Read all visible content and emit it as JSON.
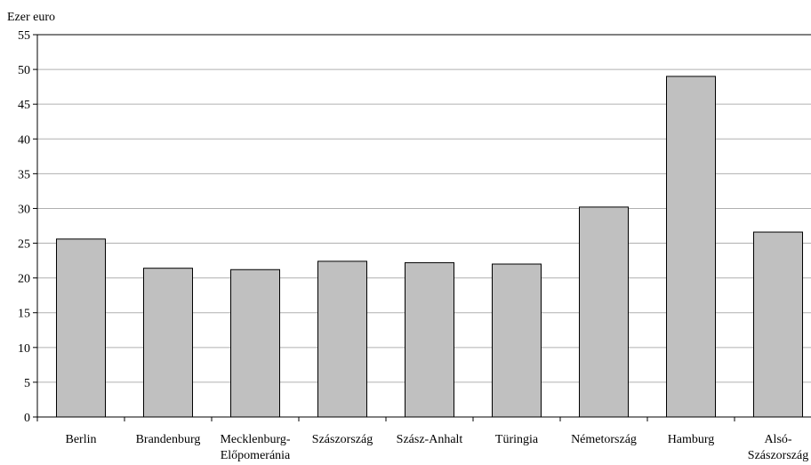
{
  "chart_data": {
    "type": "bar",
    "ylabel": "Ezer euro",
    "ylim": [
      0,
      55
    ],
    "y_ticks": [
      0,
      5,
      10,
      15,
      20,
      25,
      30,
      35,
      40,
      45,
      50,
      55
    ],
    "grid": true,
    "categories": [
      [
        "Berlin"
      ],
      [
        "Brandenburg"
      ],
      [
        "Mecklenburg-",
        "Előpomeránia"
      ],
      [
        "Szászország"
      ],
      [
        "Szász-Anhalt"
      ],
      [
        "Türingia"
      ],
      [
        "Németország"
      ],
      [
        "Hamburg"
      ],
      [
        "Alsó-",
        "Szászország"
      ]
    ],
    "values": [
      25.6,
      21.4,
      21.2,
      22.4,
      22.2,
      22.0,
      30.2,
      49.0,
      26.6
    ],
    "colors": {
      "bar_fill": "#c0c0c0",
      "bar_stroke": "#000000",
      "grid": "#b0b0b0",
      "axis": "#000000"
    }
  }
}
